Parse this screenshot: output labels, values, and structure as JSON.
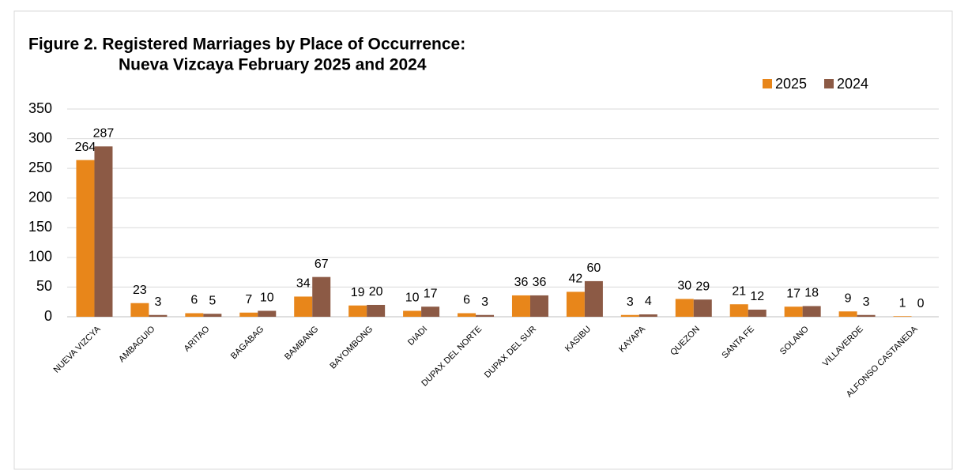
{
  "chart_data": {
    "type": "bar",
    "title": [
      "Figure 2. Registered  Marriages by Place of Occurrence:",
      "Nueva Vizcaya February 2025 and 2024"
    ],
    "categories": [
      "NUEVA VIZCYA",
      "AMBAGUIO",
      "ARITAO",
      "BAGABAG",
      "BAMBANG",
      "BAYOMBONG",
      "DIADI",
      "DUPAX DEL NORTE",
      "DUPAX DEL SUR",
      "KASIBU",
      "KAYAPA",
      "QUEZON",
      "SANTA FE",
      "SOLANO",
      "VILLAVERDE",
      "ALFONSO CASTANEDA"
    ],
    "series": [
      {
        "name": "2025",
        "color": "#e8861a",
        "values": [
          264,
          23,
          6,
          7,
          34,
          19,
          10,
          6,
          36,
          42,
          3,
          30,
          21,
          17,
          9,
          1
        ]
      },
      {
        "name": "2024",
        "color": "#8c5a45",
        "values": [
          287,
          3,
          5,
          10,
          67,
          20,
          17,
          3,
          36,
          60,
          4,
          29,
          12,
          18,
          3,
          0
        ]
      }
    ],
    "ylim": [
      0,
      350
    ],
    "yticks": [
      0,
      50,
      100,
      150,
      200,
      250,
      300,
      350
    ],
    "grid": true,
    "legend": "top-right"
  }
}
